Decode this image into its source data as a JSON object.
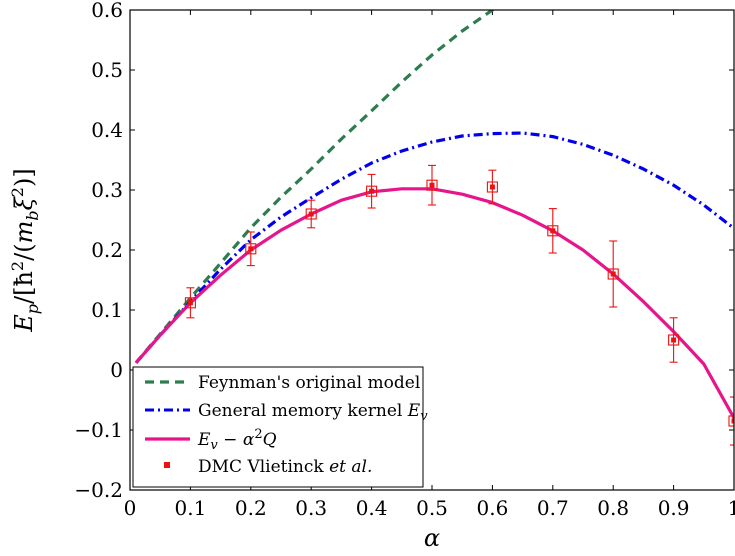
{
  "chart_data": {
    "type": "line",
    "title": "",
    "xlabel": "α",
    "ylabel": "E_p/[ħ²/(m_b ξ²)]",
    "xlim": [
      0,
      1
    ],
    "ylim": [
      -0.2,
      0.6
    ],
    "x_ticks": [
      "0",
      "0.1",
      "0.2",
      "0.3",
      "0.4",
      "0.5",
      "0.6",
      "0.7",
      "0.8",
      "0.9",
      "1"
    ],
    "y_ticks": [
      "−0.2",
      "−0.1",
      "0",
      "0.1",
      "0.2",
      "0.3",
      "0.4",
      "0.5",
      "0.6"
    ],
    "grid": false,
    "legend_position": "bottom-left",
    "series": [
      {
        "name": "Feynman's original model",
        "style": "dashed",
        "color": "#2e7d4f",
        "x": [
          0.01,
          0.05,
          0.1,
          0.15,
          0.2,
          0.25,
          0.3,
          0.35,
          0.4,
          0.45,
          0.5,
          0.55,
          0.6,
          0.62
        ],
        "y": [
          0.012,
          0.06,
          0.12,
          0.178,
          0.237,
          0.288,
          0.335,
          0.385,
          0.432,
          0.48,
          0.525,
          0.565,
          0.6,
          0.61
        ]
      },
      {
        "name": "General memory kernel E_v",
        "style": "dash-dot",
        "color": "#0000ee",
        "x": [
          0.01,
          0.05,
          0.1,
          0.15,
          0.2,
          0.25,
          0.3,
          0.35,
          0.4,
          0.45,
          0.5,
          0.55,
          0.6,
          0.65,
          0.7,
          0.75,
          0.8,
          0.85,
          0.9,
          0.95,
          1.0
        ],
        "y": [
          0.012,
          0.058,
          0.114,
          0.168,
          0.217,
          0.255,
          0.287,
          0.318,
          0.345,
          0.365,
          0.38,
          0.39,
          0.394,
          0.395,
          0.389,
          0.376,
          0.358,
          0.335,
          0.308,
          0.275,
          0.236
        ]
      },
      {
        "name": "E_v − α²Q",
        "style": "solid",
        "color": "#e6158c",
        "x": [
          0.01,
          0.05,
          0.1,
          0.15,
          0.2,
          0.25,
          0.3,
          0.35,
          0.4,
          0.45,
          0.5,
          0.55,
          0.6,
          0.65,
          0.7,
          0.75,
          0.8,
          0.85,
          0.9,
          0.95,
          1.0
        ],
        "y": [
          0.012,
          0.058,
          0.112,
          0.158,
          0.2,
          0.233,
          0.26,
          0.283,
          0.297,
          0.302,
          0.302,
          0.293,
          0.279,
          0.258,
          0.232,
          0.2,
          0.16,
          0.114,
          0.064,
          0.01,
          -0.08
        ]
      }
    ],
    "points": {
      "name": "DMC Vlietinck et al.",
      "name_prefix": "DMC Vlietinck ",
      "name_suffix": "et al.",
      "color": "#ee1111",
      "x": [
        0.1,
        0.2,
        0.3,
        0.4,
        0.5,
        0.6,
        0.7,
        0.8,
        0.9,
        1.0
      ],
      "y": [
        0.112,
        0.202,
        0.26,
        0.298,
        0.308,
        0.305,
        0.232,
        0.16,
        0.05,
        -0.085
      ],
      "err": [
        0.025,
        0.028,
        0.023,
        0.028,
        0.033,
        0.028,
        0.037,
        0.055,
        0.037,
        0.04
      ]
    }
  }
}
